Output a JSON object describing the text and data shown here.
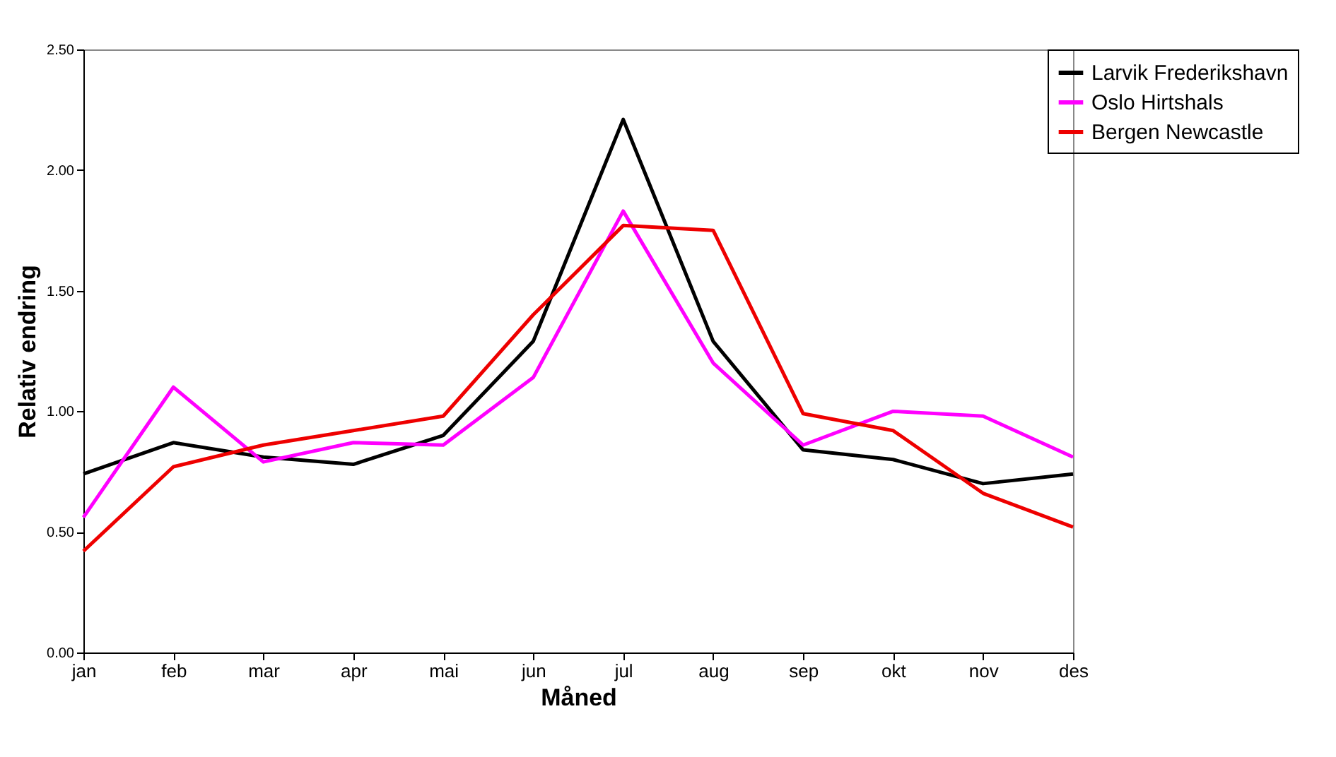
{
  "chart_data": {
    "type": "line",
    "xlabel": "Måned",
    "ylabel": "Relativ endring",
    "categories": [
      "jan",
      "feb",
      "mar",
      "apr",
      "mai",
      "jun",
      "jul",
      "aug",
      "sep",
      "okt",
      "nov",
      "des"
    ],
    "series": [
      {
        "name": "Larvik Frederikshavn",
        "color": "#000000",
        "values": [
          0.74,
          0.87,
          0.81,
          0.78,
          0.9,
          1.29,
          2.21,
          1.29,
          0.84,
          0.8,
          0.7,
          0.74
        ]
      },
      {
        "name": "Oslo Hirtshals",
        "color": "#ff00ff",
        "values": [
          0.56,
          1.1,
          0.79,
          0.87,
          0.86,
          1.14,
          1.83,
          1.2,
          0.86,
          1.0,
          0.98,
          0.81
        ]
      },
      {
        "name": "Bergen Newcastle",
        "color": "#ee0000",
        "values": [
          0.42,
          0.77,
          0.86,
          0.92,
          0.98,
          1.4,
          1.77,
          1.75,
          0.99,
          0.92,
          0.66,
          0.52
        ]
      }
    ],
    "ylim": [
      0,
      2.5
    ],
    "yticks": [
      {
        "value": 0,
        "label": "0.00"
      },
      {
        "value": 0.5,
        "label": "0.50"
      },
      {
        "value": 1,
        "label": "1.00"
      },
      {
        "value": 1.5,
        "label": "1.50"
      },
      {
        "value": 2,
        "label": "2.00"
      },
      {
        "value": 2.5,
        "label": "2.50"
      }
    ],
    "grid": false,
    "legend": "right",
    "marker": "none",
    "line_style": "solid"
  }
}
